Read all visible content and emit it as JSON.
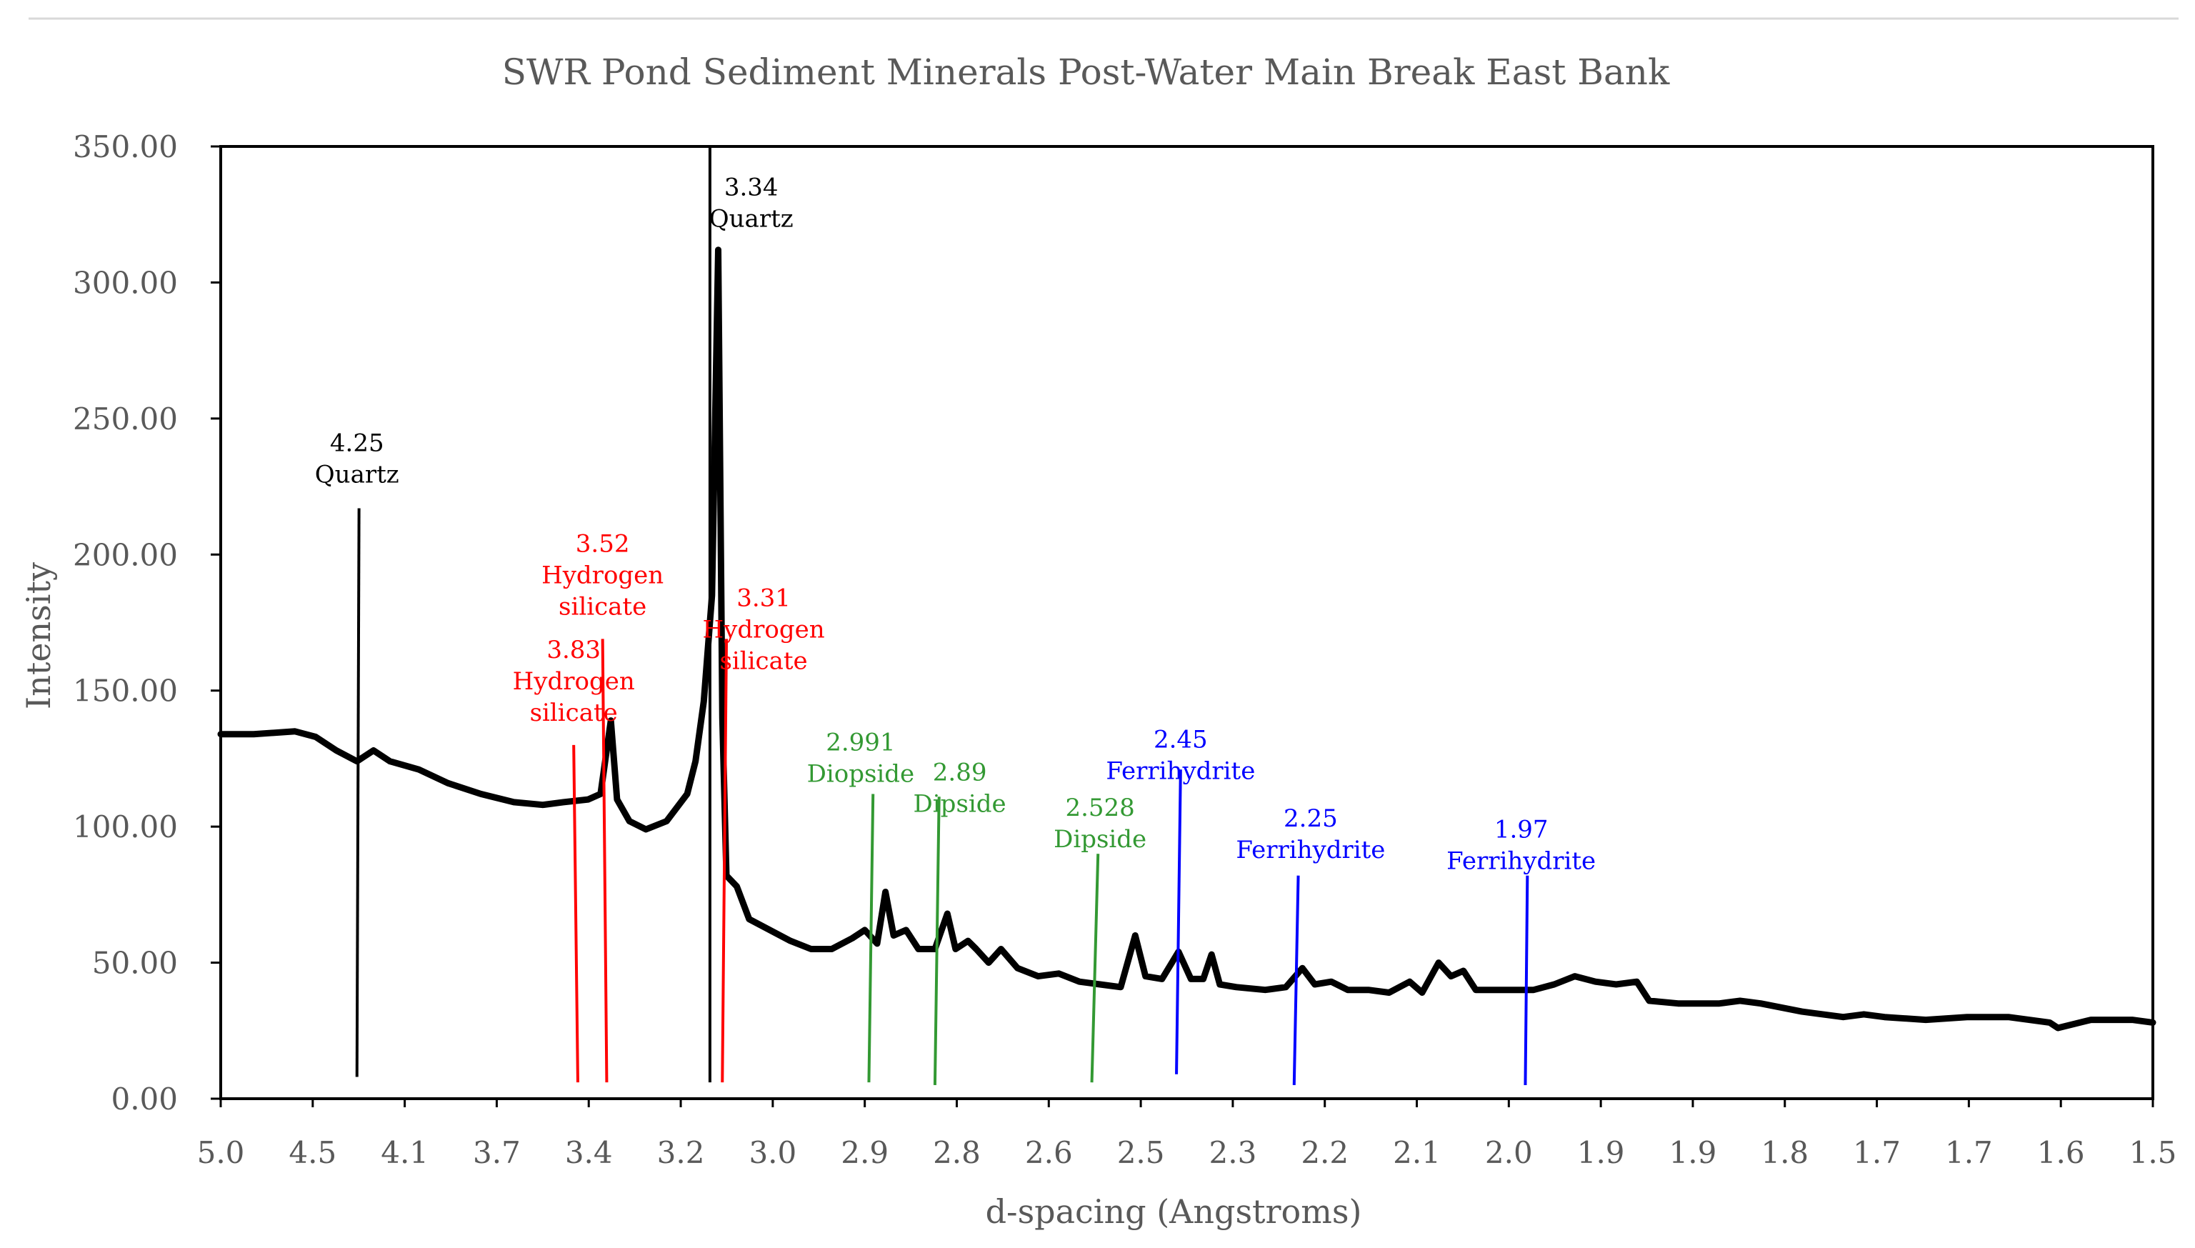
{
  "chart_data": {
    "type": "line",
    "title": "SWR Pond Sediment Minerals Post-Water Main Break East Bank",
    "xlabel": "d-spacing (Angstroms)",
    "ylabel": "Intensity",
    "ylim": [
      0,
      350
    ],
    "y_ticks": [
      "0.00",
      "50.00",
      "100.00",
      "150.00",
      "200.00",
      "250.00",
      "300.00",
      "350.00"
    ],
    "x_domain_2theta": [
      17.7,
      64.5
    ],
    "x_tick_labels": [
      "5.0",
      "4.5",
      "4.1",
      "3.7",
      "3.4",
      "3.2",
      "3.0",
      "2.9",
      "2.8",
      "2.6",
      "2.5",
      "2.3",
      "2.2",
      "2.1",
      "2.0",
      "1.9",
      "1.9",
      "1.8",
      "1.7",
      "1.7",
      "1.6",
      "1.5"
    ],
    "series": [
      {
        "name": "Intensity",
        "color": "#000000",
        "points": [
          [
            17.7,
            134
          ],
          [
            18.5,
            134
          ],
          [
            19.5,
            135
          ],
          [
            20.0,
            133
          ],
          [
            20.5,
            128
          ],
          [
            21.0,
            124
          ],
          [
            21.4,
            128
          ],
          [
            21.8,
            124
          ],
          [
            22.5,
            121
          ],
          [
            23.2,
            116
          ],
          [
            24.0,
            112
          ],
          [
            24.8,
            109
          ],
          [
            25.5,
            108
          ],
          [
            26.0,
            109
          ],
          [
            26.6,
            110
          ],
          [
            26.9,
            112
          ],
          [
            27.15,
            139
          ],
          [
            27.3,
            110
          ],
          [
            27.6,
            102
          ],
          [
            28.0,
            99
          ],
          [
            28.5,
            102
          ],
          [
            29.0,
            112
          ],
          [
            29.2,
            124
          ],
          [
            29.4,
            146
          ],
          [
            29.6,
            185
          ],
          [
            29.75,
            312
          ],
          [
            29.85,
            140
          ],
          [
            29.95,
            82
          ],
          [
            30.2,
            78
          ],
          [
            30.5,
            66
          ],
          [
            31.0,
            62
          ],
          [
            31.5,
            58
          ],
          [
            32.0,
            55
          ],
          [
            32.5,
            55
          ],
          [
            33.0,
            59
          ],
          [
            33.3,
            62
          ],
          [
            33.6,
            57
          ],
          [
            33.8,
            76
          ],
          [
            34.0,
            60
          ],
          [
            34.3,
            62
          ],
          [
            34.6,
            55
          ],
          [
            35.0,
            55
          ],
          [
            35.3,
            68
          ],
          [
            35.5,
            55
          ],
          [
            35.8,
            58
          ],
          [
            36.0,
            55
          ],
          [
            36.3,
            50
          ],
          [
            36.6,
            55
          ],
          [
            37.0,
            48
          ],
          [
            37.5,
            45
          ],
          [
            38.0,
            46
          ],
          [
            38.5,
            43
          ],
          [
            39.0,
            42
          ],
          [
            39.5,
            41
          ],
          [
            39.85,
            60
          ],
          [
            40.1,
            45
          ],
          [
            40.5,
            44
          ],
          [
            40.9,
            54
          ],
          [
            41.2,
            44
          ],
          [
            41.5,
            44
          ],
          [
            41.7,
            53
          ],
          [
            41.9,
            42
          ],
          [
            42.3,
            41
          ],
          [
            43.0,
            40
          ],
          [
            43.5,
            41
          ],
          [
            43.9,
            48
          ],
          [
            44.2,
            42
          ],
          [
            44.6,
            43
          ],
          [
            45.0,
            40
          ],
          [
            45.5,
            40
          ],
          [
            46.0,
            39
          ],
          [
            46.5,
            43
          ],
          [
            46.8,
            39
          ],
          [
            47.2,
            50
          ],
          [
            47.5,
            45
          ],
          [
            47.8,
            47
          ],
          [
            48.1,
            40
          ],
          [
            48.5,
            40
          ],
          [
            49.0,
            40
          ],
          [
            49.5,
            40
          ],
          [
            50.0,
            42
          ],
          [
            50.5,
            45
          ],
          [
            51.0,
            43
          ],
          [
            51.5,
            42
          ],
          [
            52.0,
            43
          ],
          [
            52.3,
            36
          ],
          [
            53.0,
            35
          ],
          [
            54.0,
            35
          ],
          [
            54.5,
            36
          ],
          [
            55.0,
            35
          ],
          [
            56.0,
            32
          ],
          [
            57.0,
            30
          ],
          [
            57.5,
            31
          ],
          [
            58.0,
            30
          ],
          [
            59.0,
            29
          ],
          [
            60.0,
            30
          ],
          [
            61.0,
            30
          ],
          [
            62.0,
            28
          ],
          [
            62.2,
            26
          ],
          [
            63.0,
            29
          ],
          [
            64.0,
            29
          ],
          [
            64.5,
            28
          ]
        ]
      }
    ],
    "annotations": [
      {
        "d_label": "4.25",
        "mineral": "Quartz",
        "color": "#000000",
        "line_x": [
          21.0,
          21.05
        ],
        "line_y": [
          8,
          217
        ],
        "label_x": 21.0,
        "label_y": 238
      },
      {
        "d_label": "3.83",
        "mineral": "Hydrogen silicate",
        "color": "#ff0000",
        "line_x": [
          26.35,
          26.25
        ],
        "line_y": [
          6,
          130
        ],
        "label_x": 26.25,
        "label_y": 162
      },
      {
        "d_label": "3.52",
        "mineral": "Hydrogen silicate",
        "color": "#ff0000",
        "line_x": [
          27.05,
          26.95
        ],
        "line_y": [
          6,
          169
        ],
        "label_x": 26.95,
        "label_y": 201
      },
      {
        "d_label": "3.34",
        "mineral": "Quartz",
        "color": "#000000",
        "line_x": [
          29.55,
          29.55
        ],
        "line_y": [
          6,
          350
        ],
        "label_x": 30.55,
        "label_y": 332
      },
      {
        "d_label": "3.31",
        "mineral": "Hydrogen silicate",
        "color": "#ff0000",
        "line_x": [
          29.85,
          29.95
        ],
        "line_y": [
          6,
          169
        ],
        "label_x": 30.85,
        "label_y": 181
      },
      {
        "d_label": "2.991",
        "mineral": "Diopside",
        "color": "#339933",
        "line_x": [
          33.4,
          33.5
        ],
        "line_y": [
          6,
          112
        ],
        "label_x": 33.2,
        "label_y": 128
      },
      {
        "d_label": "2.89",
        "mineral": "Dipside",
        "color": "#339933",
        "line_x": [
          35.0,
          35.1
        ],
        "line_y": [
          5,
          111
        ],
        "label_x": 35.6,
        "label_y": 117
      },
      {
        "d_label": "2.528",
        "mineral": "Dipside",
        "color": "#339933",
        "line_x": [
          38.8,
          38.95
        ],
        "line_y": [
          6,
          90
        ],
        "label_x": 39.0,
        "label_y": 104
      },
      {
        "d_label": "2.45",
        "mineral": "Ferrihydrite",
        "color": "#0000ff",
        "line_x": [
          40.85,
          40.95
        ],
        "line_y": [
          9,
          121
        ],
        "label_x": 40.95,
        "label_y": 129
      },
      {
        "d_label": "2.25",
        "mineral": "Ferrihydrite",
        "color": "#0000ff",
        "line_x": [
          43.7,
          43.8
        ],
        "line_y": [
          5,
          82
        ],
        "label_x": 44.1,
        "label_y": 100
      },
      {
        "d_label": "1.97",
        "mineral": "Ferrihydrite",
        "color": "#0000ff",
        "line_x": [
          49.3,
          49.35
        ],
        "line_y": [
          5,
          82
        ],
        "label_x": 49.2,
        "label_y": 96
      }
    ]
  }
}
